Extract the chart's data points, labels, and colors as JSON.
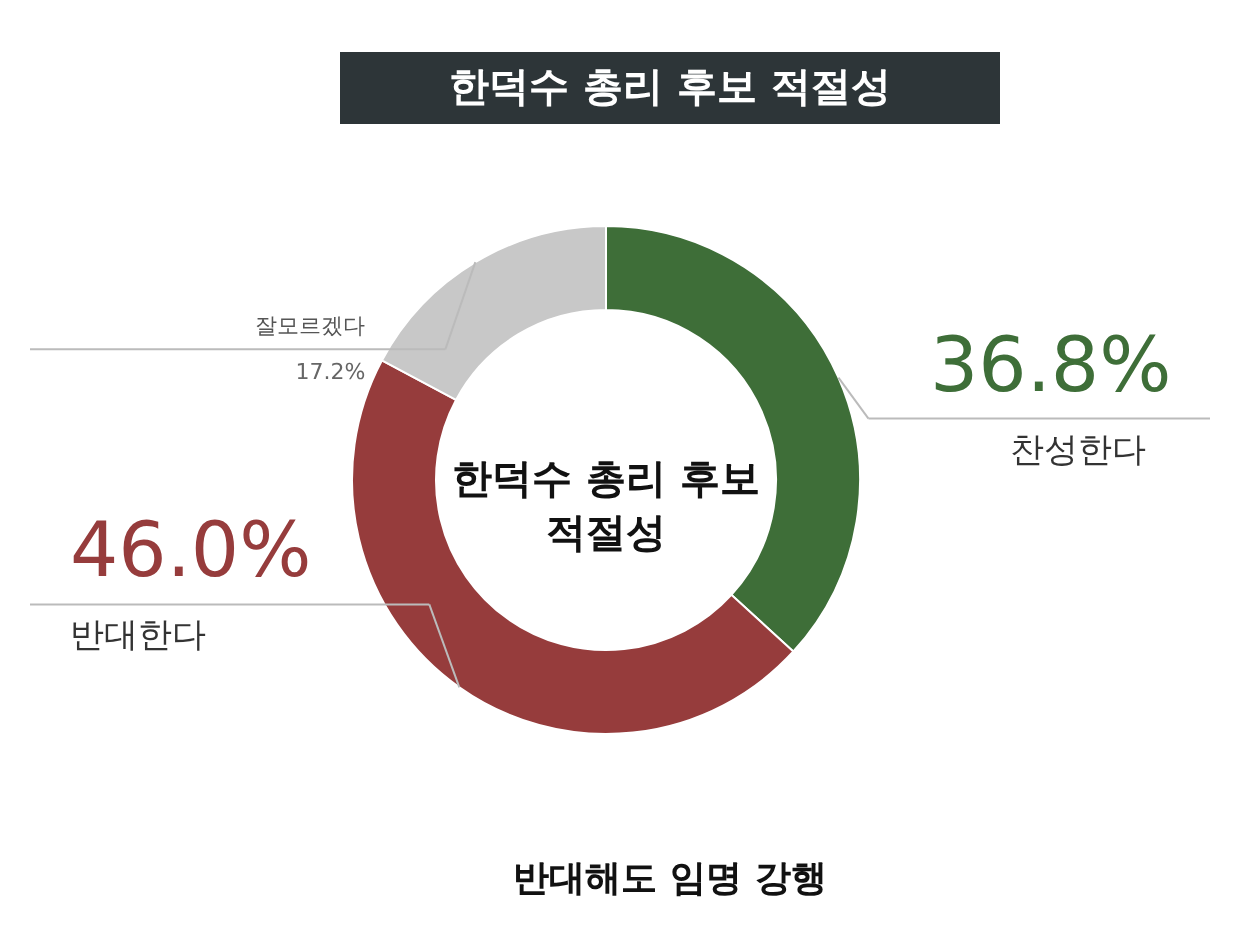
{
  "chart_data": {
    "type": "donut",
    "title": "한덕수 총리 후보 적절성",
    "categories": [
      "찬성한다",
      "반대한다",
      "잘모르겠다"
    ],
    "values": [
      36.8,
      46.0,
      17.2
    ],
    "colors": [
      "#3e6e38",
      "#963c3c",
      "#c8c8c8"
    ],
    "value_labels": [
      "36.8%",
      "46.0%",
      "17.2%"
    ],
    "annotations": [
      "한덕수 총리 후보\n적절성",
      "반대해도 임명 강행"
    ]
  }
}
